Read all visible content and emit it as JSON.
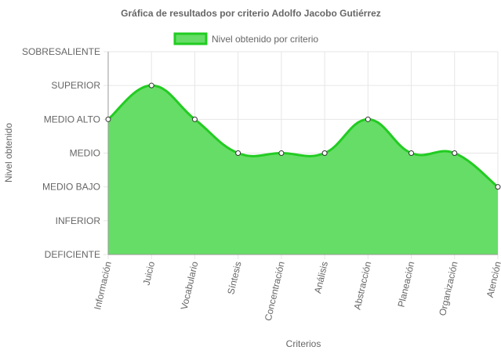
{
  "chart_data": {
    "type": "area",
    "title": "Gráfica de resultados por criterio Adolfo Jacobo Gutiérrez",
    "xlabel": "Criterios",
    "ylabel": "Nivel obtenido",
    "categories": [
      "Información",
      "Juicio",
      "Vocabulario",
      "Síntesis",
      "Concentración",
      "Análisis",
      "Abstracción",
      "Planeación",
      "Organización",
      "Atención"
    ],
    "y_levels": [
      "DEFICIENTE",
      "INFERIOR",
      "MEDIO BAJO",
      "MEDIO",
      "MEDIO ALTO",
      "SUPERIOR",
      "SOBRESALIENTE"
    ],
    "series": [
      {
        "name": "Nivel obtenido por criterio",
        "values": [
          4,
          5,
          4,
          3,
          3,
          3,
          4,
          3,
          3,
          2
        ],
        "value_labels": [
          "MEDIO ALTO",
          "SUPERIOR",
          "MEDIO ALTO",
          "MEDIO",
          "MEDIO",
          "MEDIO",
          "MEDIO ALTO",
          "MEDIO",
          "MEDIO",
          "MEDIO BAJO"
        ]
      }
    ],
    "ylim": [
      0,
      6
    ],
    "grid": true,
    "legend": "top",
    "colors": {
      "fill": "#66dd66",
      "line": "#22cc22",
      "point_fill": "#ffffff",
      "point_stroke": "#333333",
      "grid": "#e6e6e6",
      "axis": "#999999",
      "text": "#666666"
    }
  }
}
